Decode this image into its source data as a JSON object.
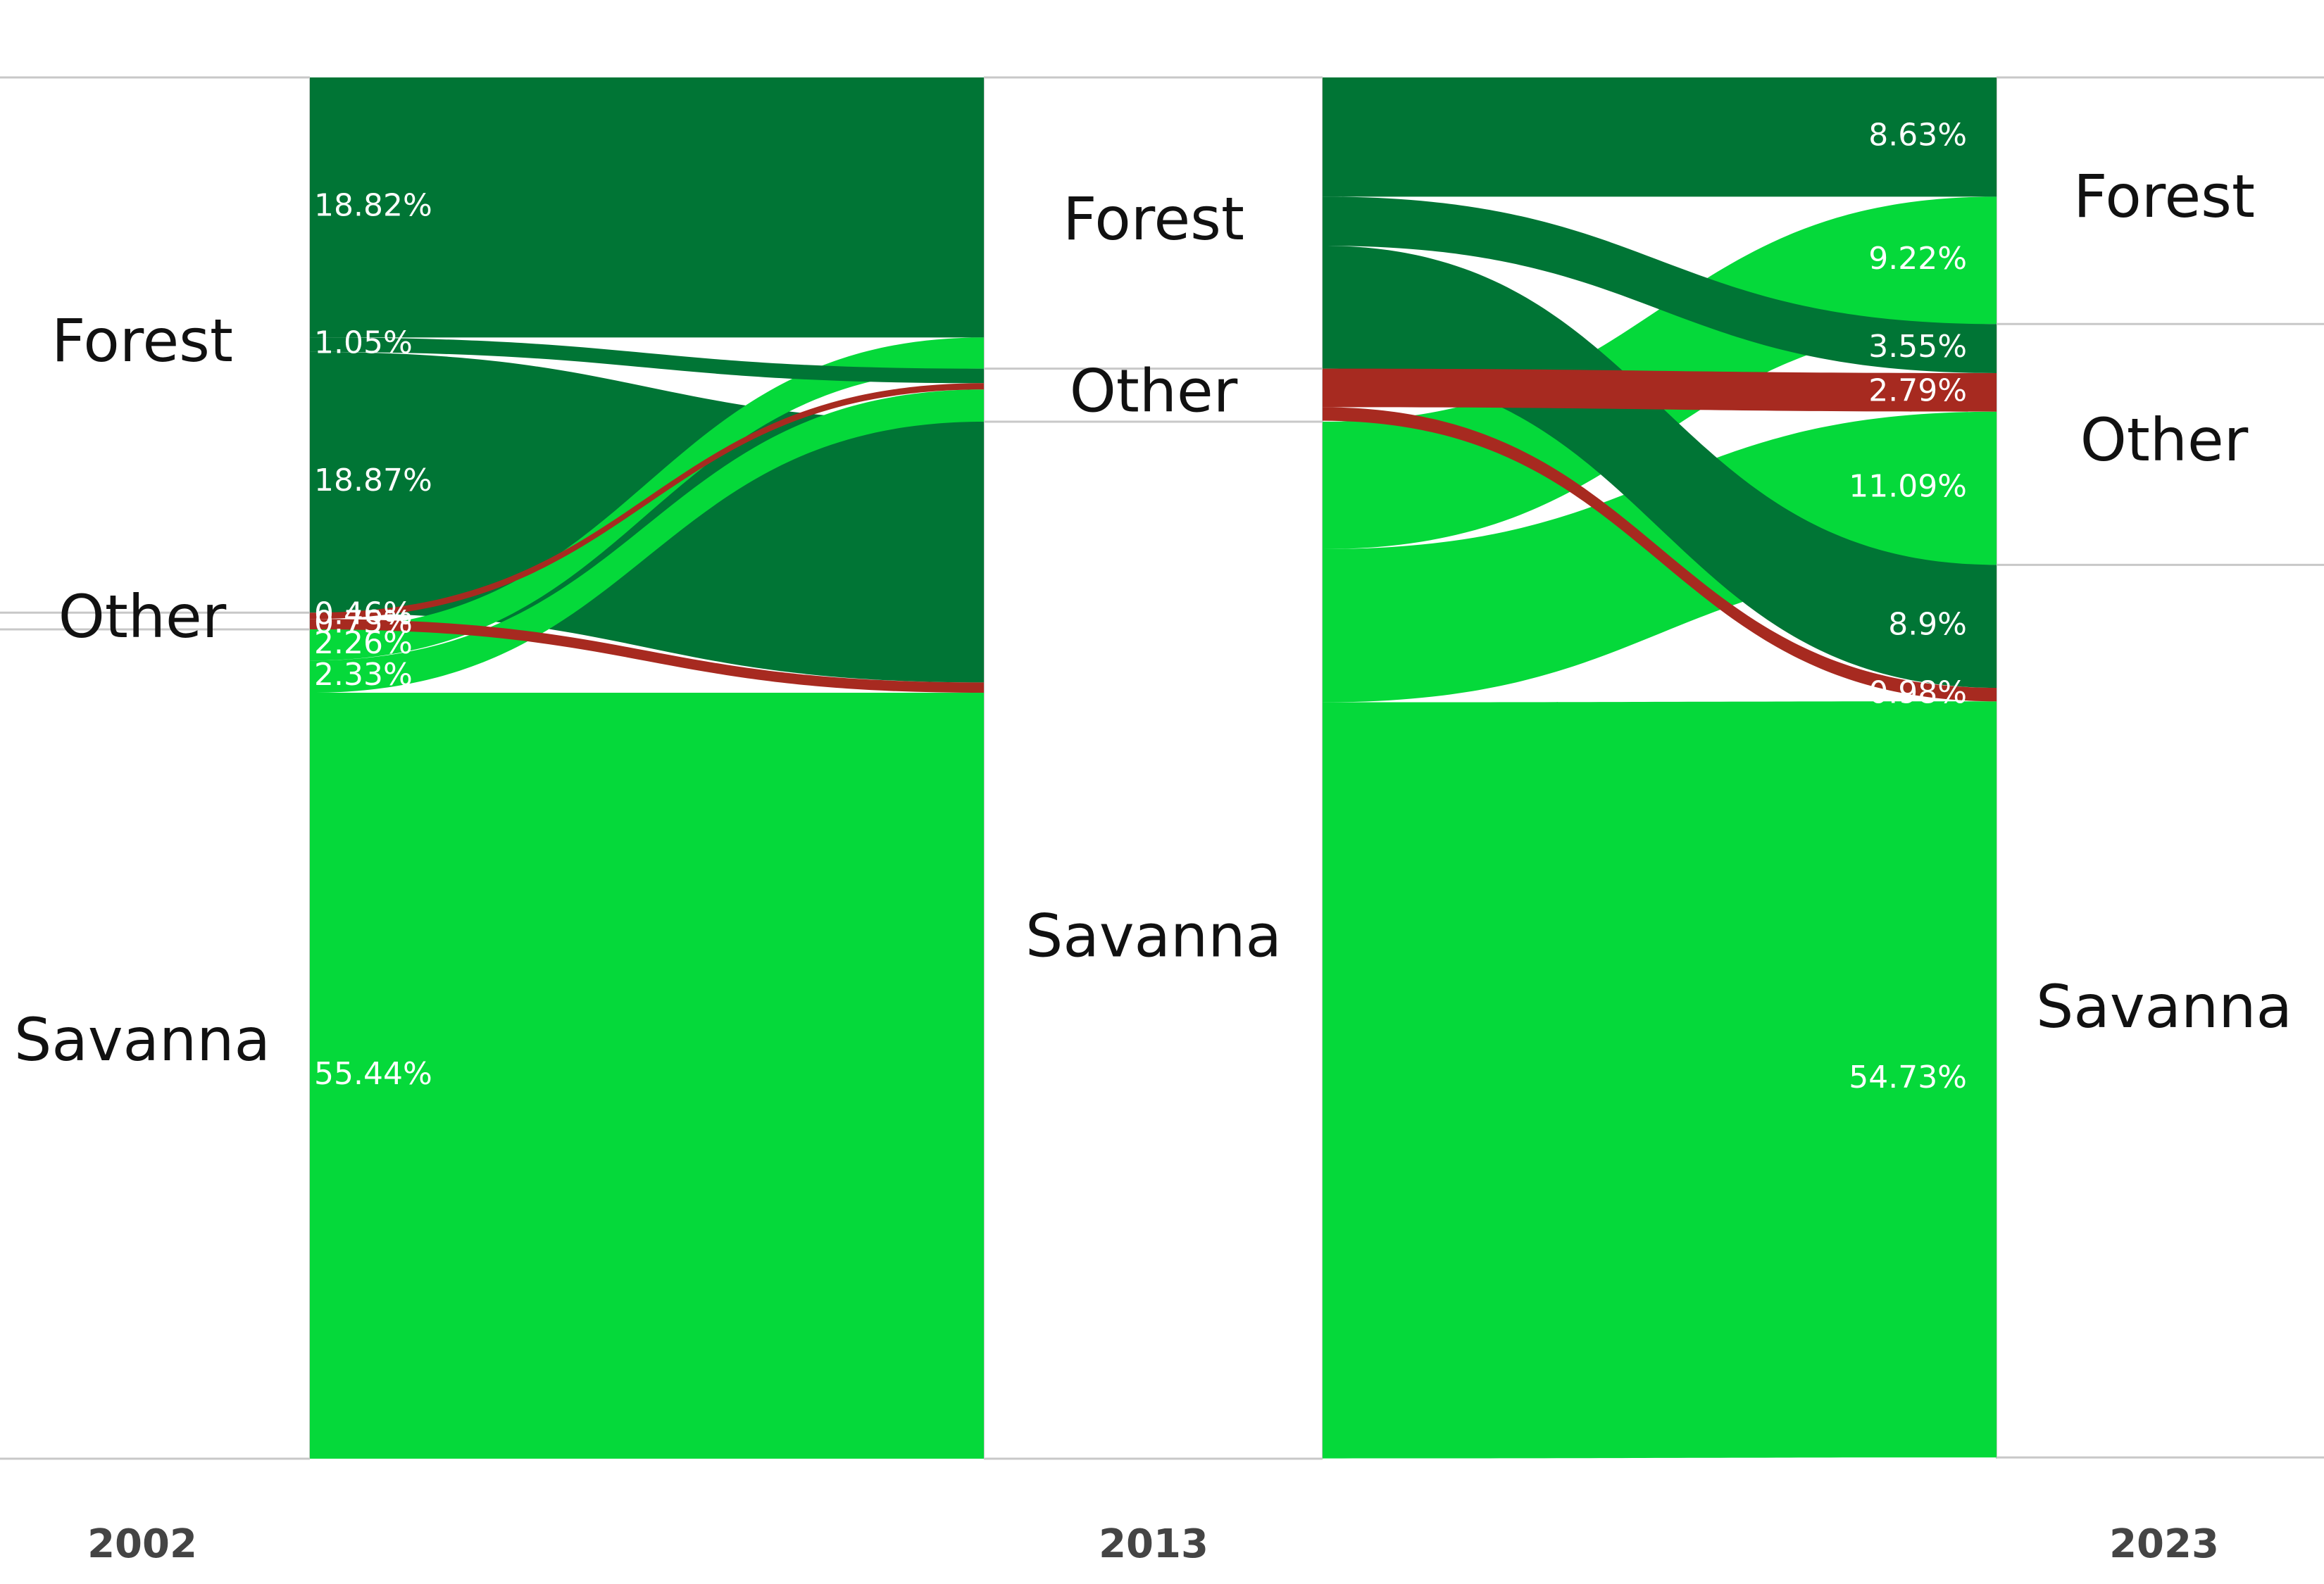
{
  "colors": {
    "forest": "#007535",
    "savanna": "#05d93a",
    "other": "#a72a20",
    "rule": "#c8c8c8",
    "background": "#ffffff"
  },
  "chart_data": {
    "type": "sankey",
    "years": [
      "2002",
      "2013",
      "2023"
    ],
    "categories": [
      "Forest",
      "Other",
      "Savanna"
    ],
    "node_labels": {
      "2002": [
        "Forest",
        "Other",
        "Savanna"
      ],
      "2013": [
        "Forest",
        "Other",
        "Savanna"
      ],
      "2023": [
        "Forest",
        "Other",
        "Savanna"
      ]
    },
    "flows": [
      {
        "period": "2002-2013",
        "from": "Forest",
        "to": "Forest",
        "value": 18.82,
        "label": "18.82%"
      },
      {
        "period": "2002-2013",
        "from": "Forest",
        "to": "Other",
        "value": 1.05,
        "label": "1.05%"
      },
      {
        "period": "2002-2013",
        "from": "Forest",
        "to": "Savanna",
        "value": 18.87,
        "label": "18.87%"
      },
      {
        "period": "2002-2013",
        "from": "Other",
        "to": "Other",
        "value": 0.46,
        "label": "0.46%"
      },
      {
        "period": "2002-2013",
        "from": "Other",
        "to": "Savanna",
        "value": 0.75,
        "label": "0.75%"
      },
      {
        "period": "2002-2013",
        "from": "Savanna",
        "to": "Forest",
        "value": 2.26,
        "label": "2.26%"
      },
      {
        "period": "2002-2013",
        "from": "Savanna",
        "to": "Other",
        "value": 2.33,
        "label": "2.33%"
      },
      {
        "period": "2002-2013",
        "from": "Savanna",
        "to": "Savanna",
        "value": 55.44,
        "label": "55.44%"
      },
      {
        "period": "2013-2023",
        "from": "Forest",
        "to": "Forest",
        "value": 8.63,
        "label": "8.63%"
      },
      {
        "period": "2013-2023",
        "from": "Forest",
        "to": "Other",
        "value": 3.55,
        "label": "3.55%"
      },
      {
        "period": "2013-2023",
        "from": "Forest",
        "to": "Savanna",
        "value": 8.9,
        "label": "8.9%"
      },
      {
        "period": "2013-2023",
        "from": "Other",
        "to": "Other",
        "value": 2.79,
        "label": "2.79%"
      },
      {
        "period": "2013-2023",
        "from": "Other",
        "to": "Savanna",
        "value": 0.98,
        "label": "0.98%"
      },
      {
        "period": "2013-2023",
        "from": "Savanna",
        "to": "Forest",
        "value": 9.22,
        "label": "9.22%"
      },
      {
        "period": "2013-2023",
        "from": "Savanna",
        "to": "Other",
        "value": 11.09,
        "label": "11.09%"
      },
      {
        "period": "2013-2023",
        "from": "Savanna",
        "to": "Savanna",
        "value": 54.73,
        "label": "54.73%"
      }
    ]
  }
}
